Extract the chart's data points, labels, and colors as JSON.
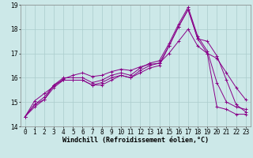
{
  "xlabel": "Windchill (Refroidissement éolien,°C)",
  "background_color": "#cce8e8",
  "line_color": "#880088",
  "xlim": [
    -0.5,
    23.5
  ],
  "ylim": [
    14,
    19
  ],
  "yticks": [
    14,
    15,
    16,
    17,
    18,
    19
  ],
  "xticks": [
    0,
    1,
    2,
    3,
    4,
    5,
    6,
    7,
    8,
    9,
    10,
    11,
    12,
    13,
    14,
    15,
    16,
    17,
    18,
    19,
    20,
    21,
    22,
    23
  ],
  "series": [
    [
      14.4,
      14.9,
      15.1,
      15.7,
      15.9,
      15.9,
      15.9,
      15.7,
      15.8,
      16.0,
      16.1,
      16.0,
      16.3,
      16.5,
      16.6,
      17.3,
      18.1,
      18.8,
      17.6,
      17.5,
      16.9,
      15.9,
      14.9,
      14.6
    ],
    [
      14.4,
      14.9,
      15.2,
      15.7,
      16.0,
      16.0,
      16.0,
      15.8,
      15.9,
      16.1,
      16.2,
      16.1,
      16.4,
      16.6,
      16.7,
      17.4,
      18.2,
      18.9,
      17.7,
      17.1,
      15.8,
      15.0,
      14.8,
      14.7
    ],
    [
      14.4,
      15.05,
      15.35,
      15.65,
      15.95,
      16.1,
      16.2,
      16.05,
      16.1,
      16.25,
      16.35,
      16.3,
      16.45,
      16.55,
      16.6,
      17.0,
      17.5,
      18.0,
      17.3,
      17.0,
      16.8,
      16.2,
      15.6,
      15.1
    ],
    [
      14.4,
      14.8,
      15.1,
      15.6,
      15.9,
      15.9,
      15.9,
      15.7,
      15.7,
      15.9,
      16.1,
      16.0,
      16.2,
      16.4,
      16.5,
      17.3,
      18.1,
      18.8,
      17.6,
      17.0,
      14.8,
      14.7,
      14.5,
      14.5
    ]
  ],
  "grid_color": "#aacccc",
  "tick_fontsize": 5.5,
  "label_fontsize": 6.0,
  "title_fontsize": 6.5
}
